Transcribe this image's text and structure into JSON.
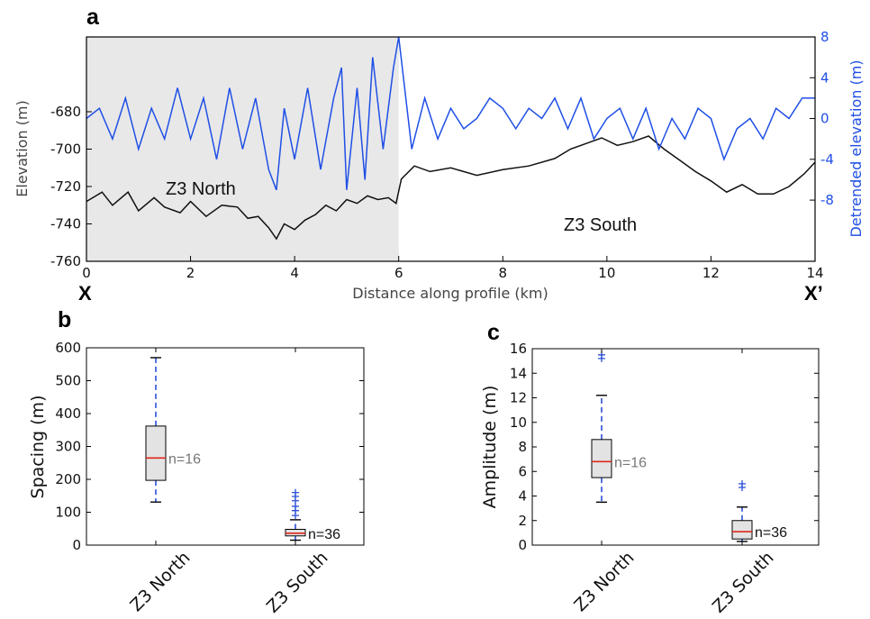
{
  "chart_data": [
    {
      "panel": "a",
      "type": "line",
      "xlabel": "Distance along profile (km)",
      "ylabel": "Elevation (m)",
      "ylabel_right": "Detrended elevation (m)",
      "xlim": [
        0,
        14
      ],
      "ylim": [
        -760,
        -640
      ],
      "ylim_right": [
        -14,
        8
      ],
      "x_ticks": [
        "0",
        "2",
        "4",
        "6",
        "8",
        "10",
        "12",
        "14"
      ],
      "y_ticks": [
        "-760",
        "-740",
        "-720",
        "-700",
        "-680"
      ],
      "y_ticks_right": [
        "-8",
        "-4",
        "0",
        "4",
        "8"
      ],
      "end_labels": {
        "left": "X",
        "right": "X’"
      },
      "region_labels": {
        "north": "Z3 North",
        "south": "Z3 South"
      },
      "shaded_region_x": [
        0,
        6
      ],
      "series": [
        {
          "axis": "left",
          "color": "#111111",
          "x": [
            0,
            0.3,
            0.5,
            0.8,
            1.0,
            1.3,
            1.5,
            1.8,
            2.0,
            2.3,
            2.6,
            2.9,
            3.1,
            3.3,
            3.5,
            3.65,
            3.8,
            4.0,
            4.2,
            4.4,
            4.6,
            4.8,
            5.0,
            5.2,
            5.4,
            5.6,
            5.8,
            5.95,
            6.05,
            6.3,
            6.6,
            7.0,
            7.5,
            8.0,
            8.5,
            9.0,
            9.3,
            9.6,
            9.9,
            10.2,
            10.5,
            10.8,
            11.1,
            11.4,
            11.7,
            12.0,
            12.3,
            12.6,
            12.9,
            13.2,
            13.5,
            13.8,
            14.0
          ],
          "y": [
            -728,
            -723,
            -730,
            -723,
            -733,
            -726,
            -731,
            -734,
            -728,
            -736,
            -730,
            -731,
            -737,
            -736,
            -742,
            -748,
            -740,
            -743,
            -738,
            -735,
            -730,
            -733,
            -727,
            -729,
            -725,
            -727,
            -726,
            -729,
            -716,
            -709,
            -712,
            -710,
            -714,
            -711,
            -709,
            -705,
            -700,
            -697,
            -694,
            -698,
            -696,
            -693,
            -700,
            -706,
            -712,
            -717,
            -723,
            -719,
            -724,
            -724,
            -720,
            -713,
            -707
          ]
        },
        {
          "axis": "right",
          "color": "#1f4fe6",
          "x": [
            0,
            0.25,
            0.5,
            0.75,
            1.0,
            1.25,
            1.5,
            1.75,
            2.0,
            2.25,
            2.5,
            2.75,
            3.0,
            3.25,
            3.5,
            3.65,
            3.8,
            4.0,
            4.25,
            4.5,
            4.75,
            4.9,
            5.0,
            5.2,
            5.35,
            5.5,
            5.7,
            5.9,
            6.0,
            6.25,
            6.5,
            6.75,
            7.0,
            7.25,
            7.5,
            7.75,
            8.0,
            8.25,
            8.5,
            8.75,
            9.0,
            9.25,
            9.5,
            9.75,
            10.0,
            10.25,
            10.5,
            10.75,
            11.0,
            11.25,
            11.5,
            11.75,
            12.0,
            12.25,
            12.5,
            12.75,
            13.0,
            13.25,
            13.5,
            13.75,
            14.0
          ],
          "y": [
            0,
            1,
            -2,
            2,
            -3,
            1,
            -2,
            3,
            -2,
            2,
            -4,
            3,
            -3,
            2,
            -5,
            -7,
            1,
            -4,
            3,
            -5,
            2,
            5,
            -7,
            3,
            -6,
            6,
            -3,
            5,
            8,
            -3,
            2,
            -2,
            1,
            -1,
            0,
            2,
            1,
            -1,
            1,
            0,
            2,
            -1,
            2,
            -2,
            0,
            1,
            -2,
            1,
            -3,
            0,
            -2,
            1,
            0,
            -4,
            -1,
            0,
            -2,
            1,
            0,
            2,
            2
          ]
        }
      ]
    },
    {
      "panel": "b",
      "type": "box",
      "ylabel": "Spacing (m)",
      "ylim": [
        0,
        600
      ],
      "y_ticks": [
        "0",
        "100",
        "200",
        "300",
        "400",
        "500",
        "600"
      ],
      "categories": [
        "Z3 North",
        "Z3 South"
      ],
      "boxes": [
        {
          "q1": 197,
          "median": 265,
          "q3": 362,
          "whisker_low": 131,
          "whisker_high": 570,
          "outliers": [],
          "n_label": "n=16"
        },
        {
          "q1": 28,
          "median": 36,
          "q3": 48,
          "whisker_low": 15,
          "whisker_high": 77,
          "outliers": [
            90,
            105,
            118,
            135,
            148,
            160
          ],
          "n_label": "n=36"
        }
      ]
    },
    {
      "panel": "c",
      "type": "box",
      "ylabel": "Amplitude (m)",
      "ylim": [
        0,
        16
      ],
      "y_ticks": [
        "0",
        "2",
        "4",
        "6",
        "8",
        "10",
        "12",
        "14",
        "16"
      ],
      "categories": [
        "Z3 North",
        "Z3 South"
      ],
      "boxes": [
        {
          "q1": 5.5,
          "median": 6.8,
          "q3": 8.6,
          "whisker_low": 3.5,
          "whisker_high": 12.2,
          "outliers": [
            15.2,
            15.5
          ],
          "n_label": "n=16"
        },
        {
          "q1": 0.5,
          "median": 1.1,
          "q3": 2.0,
          "whisker_low": 0.3,
          "whisker_high": 3.1,
          "outliers": [
            4.7,
            5.0
          ],
          "n_label": "n=36"
        }
      ]
    }
  ]
}
